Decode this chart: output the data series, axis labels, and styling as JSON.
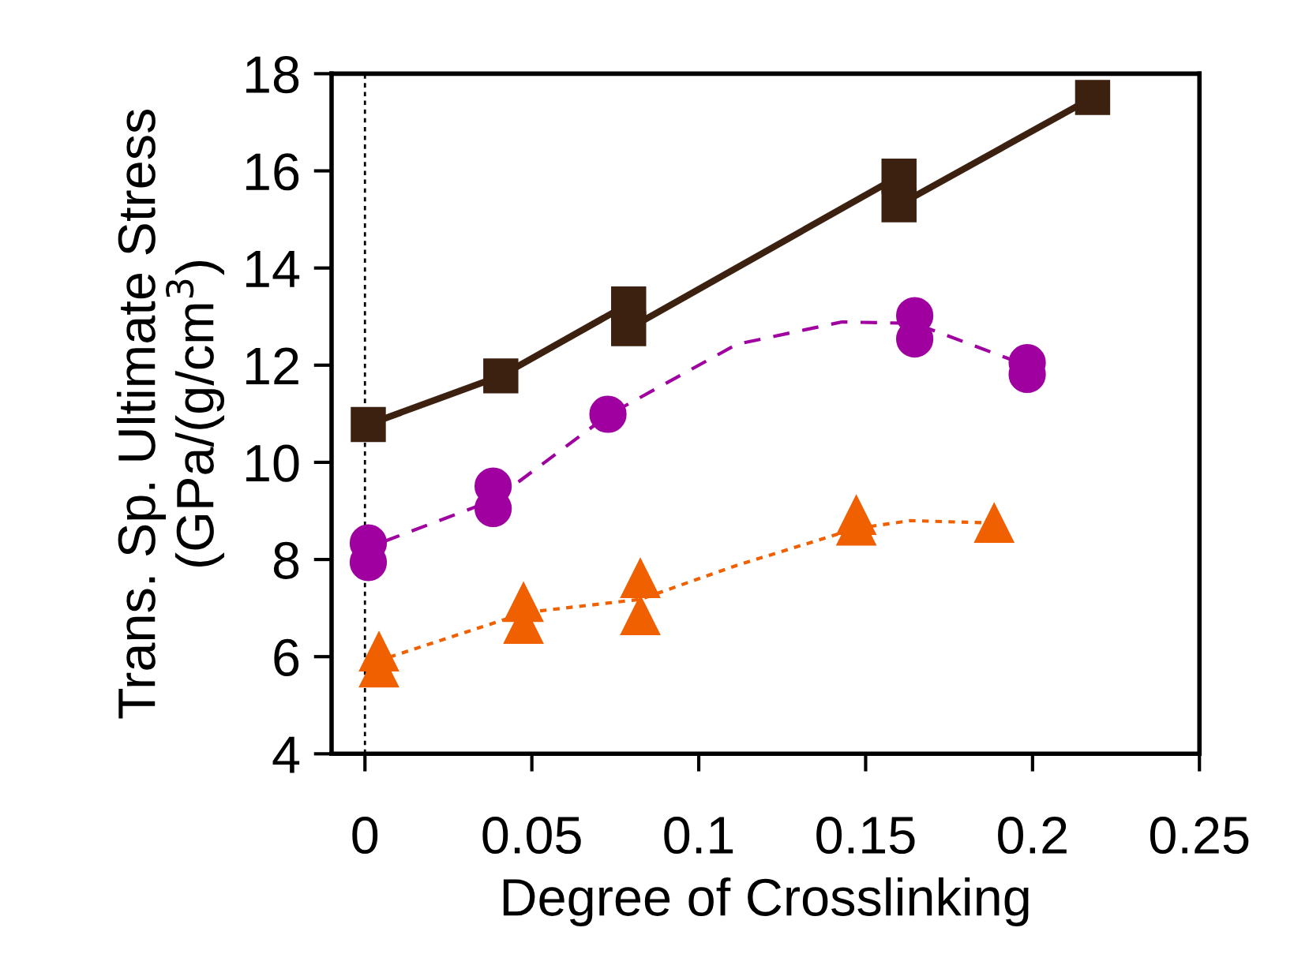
{
  "chart_data": {
    "type": "line",
    "xlabel": "Degree of Crosslinking",
    "ylabel": "Trans. Sp. Ultimate Stress\n(GPa/(g/cm$^{3}$)",
    "xlim": [
      -0.01,
      0.25
    ],
    "xticks": [
      0,
      0.05,
      0.1,
      0.15,
      0.2,
      0.25
    ],
    "ylim": [
      4,
      18
    ],
    "yticks": [
      4,
      6,
      8,
      10,
      12,
      14,
      16,
      18
    ],
    "grid": false,
    "ref_lines": [
      {
        "axis": "x",
        "value": 0,
        "color": "#000000",
        "line_style": "dotted"
      }
    ],
    "series": [
      {
        "color": "#3c2010",
        "marker": "square",
        "line_style": "solid",
        "x": [
          0.001,
          0.0407,
          0.079,
          0.079,
          0.16,
          0.16,
          0.218
        ],
        "values": [
          10.78,
          11.78,
          13.26,
          12.75,
          15.89,
          15.3,
          17.51
        ]
      },
      {
        "color": "#a000a0",
        "marker": "none",
        "line_style": "dashed",
        "x": [
          0.0057,
          0.0388,
          0.0728,
          0.1114,
          0.1429,
          0.1647,
          0.1984
        ],
        "values": [
          8.37,
          9.23,
          10.97,
          12.43,
          12.89,
          12.86,
          11.99
        ]
      },
      {
        "type": "scatter",
        "color": "#a000a0",
        "marker": "circle",
        "x": [
          0.001,
          0.001,
          0.0384,
          0.0384,
          0.0728,
          0.1647,
          0.1647,
          0.1984,
          0.1984
        ],
        "values": [
          8.34,
          7.94,
          9.51,
          9.05,
          10.99,
          13.02,
          12.54,
          12.05,
          11.81
        ]
      },
      {
        "color": "#f06000",
        "marker": "none",
        "line_style": "dotted",
        "x": [
          0.0073,
          0.0483,
          0.0825,
          0.1114,
          0.1472,
          0.1634,
          0.1885
        ],
        "values": [
          5.99,
          6.91,
          7.18,
          7.88,
          8.64,
          8.8,
          8.75
        ]
      },
      {
        "type": "scatter",
        "color": "#f06000",
        "marker": "triangle",
        "x": [
          0.0042,
          0.0042,
          0.0475,
          0.0475,
          0.0825,
          0.0825,
          0.1472,
          0.1472,
          0.1885
        ],
        "values": [
          6.1,
          5.77,
          7.12,
          6.67,
          7.61,
          6.85,
          8.91,
          8.69,
          8.75
        ]
      }
    ]
  }
}
